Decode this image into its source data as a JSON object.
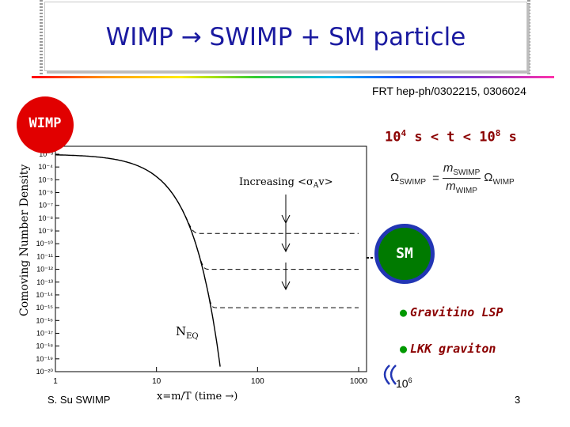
{
  "title": "WIMP → SWIMP + SM particle",
  "reference": "FRT hep-ph/0302215, 0306024",
  "wimp_label": "WIMP",
  "sm_label": "SM",
  "timescale": {
    "prefix": "10",
    "exp1": "4",
    "mid": " s < t < 10",
    "exp2": "8",
    "suffix": " s"
  },
  "formula": {
    "lhs": "Ω",
    "lhs_sub": "SWIMP",
    "eq": "=",
    "num": "m",
    "num_sub": "SWIMP",
    "den": "m",
    "den_sub": "WIMP",
    "rhs": "Ω",
    "rhs_sub": "WIMP"
  },
  "bullets": [
    "Gravitino LSP",
    "LKK graviton"
  ],
  "scale": {
    "base": "10",
    "exp": "6"
  },
  "footer": {
    "author": "S. Su  SWIMP",
    "page": "3"
  },
  "colors": {
    "title": "#1a1aa0",
    "wimp": "#e10000",
    "sm_fill": "#007a00",
    "sm_ring": "#2236b4",
    "bullet_text": "#8b0000"
  },
  "chart_data": {
    "type": "line",
    "title": "",
    "xlabel": "x=m/T (time →)",
    "ylabel": "Comoving Number Density",
    "xscale": "log",
    "yscale": "log",
    "xlim": [
      1,
      1000
    ],
    "ylim_exp": [
      -20,
      -3
    ],
    "x_ticks": [
      "1",
      "10",
      "100",
      "1000"
    ],
    "y_ticks": [
      "10⁻³",
      "10⁻⁴",
      "10⁻⁵",
      "10⁻⁶",
      "10⁻⁷",
      "10⁻⁸",
      "10⁻⁹",
      "10⁻¹⁰",
      "10⁻¹¹",
      "10⁻¹²",
      "10⁻¹³",
      "10⁻¹⁴",
      "10⁻¹⁵",
      "10⁻¹⁶",
      "10⁻¹⁷",
      "10⁻¹⁸",
      "10⁻¹⁹",
      "10⁻²⁰"
    ],
    "annotations": {
      "increasing": "Increasing <σ",
      "increasing_sub": "A",
      "increasing_end": "v>",
      "neq": "N",
      "neq_sub": "EQ"
    },
    "series": [
      {
        "name": "equilibrium",
        "style": "solid",
        "freeze_out_log10": null
      },
      {
        "name": "freeze-out 1",
        "style": "dashed",
        "freeze_out_log10": -9.2
      },
      {
        "name": "freeze-out 2",
        "style": "dashed",
        "freeze_out_log10": -12.0
      },
      {
        "name": "freeze-out 3",
        "style": "dashed",
        "freeze_out_log10": -15.0
      }
    ]
  }
}
